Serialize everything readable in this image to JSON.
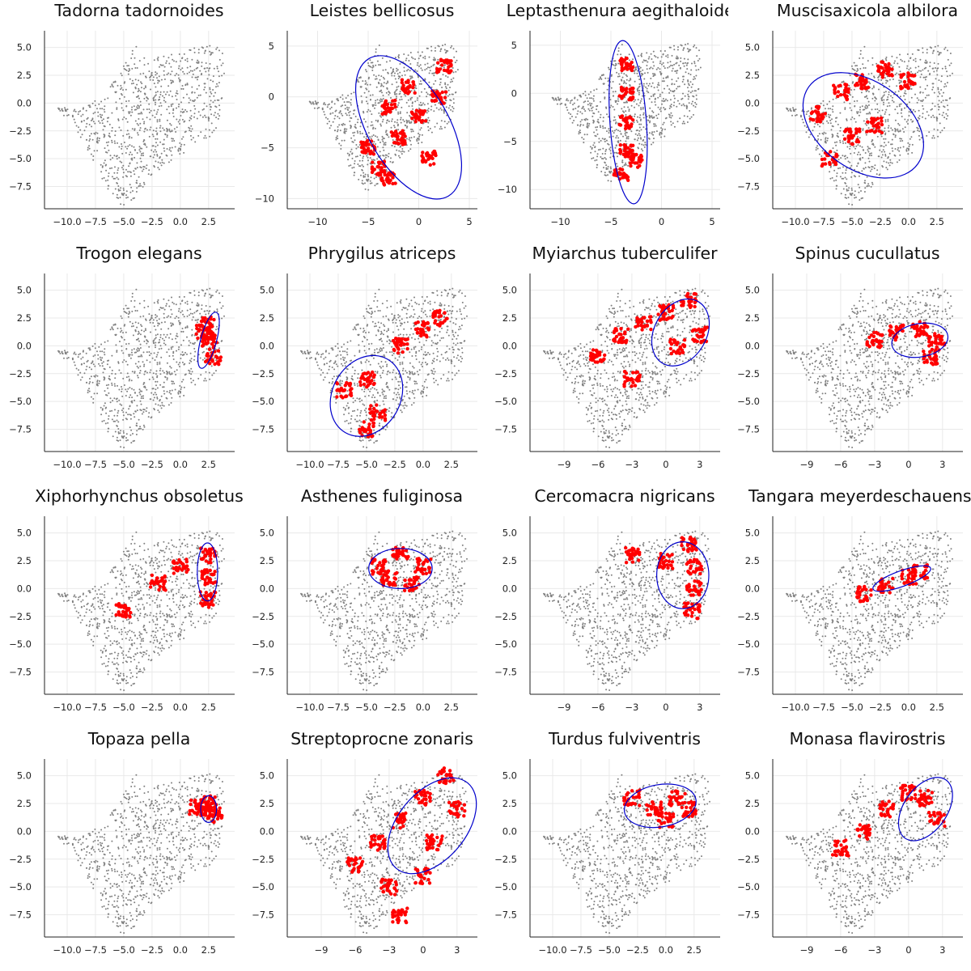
{
  "chart_data": [
    {
      "type": "scatter",
      "title": "Tadorna tadornoides",
      "xticks": [
        "−10.0",
        "−7.5",
        "−5.0",
        "−2.5",
        "0.0",
        "2.5"
      ],
      "yticks": [
        "5.0",
        "2.5",
        "0.0",
        "−2.5",
        "−5.0",
        "−7.5"
      ],
      "xlim": [
        -12,
        4.8
      ],
      "ylim": [
        -9.5,
        6.5
      ],
      "xtick_values": [
        -10,
        -7.5,
        -5,
        -2.5,
        0,
        2.5
      ],
      "ytick_values": [
        5,
        2.5,
        0,
        -2.5,
        -5,
        -7.5
      ],
      "species_points": "none",
      "ellipse": null
    },
    {
      "type": "scatter",
      "title": "Leistes bellicosus",
      "xticks": [
        "−10",
        "−5",
        "0",
        "5"
      ],
      "yticks": [
        "5",
        "0",
        "−5",
        "−10"
      ],
      "xlim": [
        -13,
        5.8
      ],
      "ylim": [
        -11,
        6.5
      ],
      "xtick_values": [
        -10,
        -5,
        0,
        5
      ],
      "ytick_values": [
        5,
        0,
        -5,
        -10
      ],
      "species_points": [
        [
          -4,
          -7
        ],
        [
          -2,
          -4
        ],
        [
          0,
          -2
        ],
        [
          2,
          0
        ],
        [
          2.5,
          3
        ],
        [
          -1,
          1
        ],
        [
          -3,
          -1
        ],
        [
          -5,
          -5
        ],
        [
          1,
          -6
        ],
        [
          -3,
          -8
        ]
      ],
      "ellipse": {
        "cx": -1,
        "cy": -3,
        "rx": 4,
        "ry": 7.8,
        "angle_deg": -30
      }
    },
    {
      "type": "scatter",
      "title": "Leptasthenura aegithaloides",
      "xticks": [
        "−10",
        "−5",
        "0",
        "5"
      ],
      "yticks": [
        "5",
        "0",
        "−5",
        "−10"
      ],
      "xlim": [
        -13,
        5.8
      ],
      "ylim": [
        -12,
        6.5
      ],
      "xtick_values": [
        -10,
        -5,
        0,
        5
      ],
      "ytick_values": [
        5,
        0,
        -5,
        -10
      ],
      "species_points": [
        [
          -3.5,
          3
        ],
        [
          -3.5,
          0
        ],
        [
          -3.5,
          -3
        ],
        [
          -3.5,
          -6
        ],
        [
          -4,
          -8.5
        ],
        [
          -2.5,
          -7
        ]
      ],
      "ellipse": {
        "cx": -3.3,
        "cy": -3,
        "rx": 1.8,
        "ry": 8.5,
        "angle_deg": -4
      }
    },
    {
      "type": "scatter",
      "title": "Muscisaxicola albilora",
      "xticks": [
        "−10.0",
        "−7.5",
        "−5.0",
        "−2.5",
        "0.0",
        "2.5"
      ],
      "yticks": [
        "5.0",
        "2.5",
        "0.0",
        "−2.5",
        "−5.0",
        "−7.5"
      ],
      "xlim": [
        -12,
        4.8
      ],
      "ylim": [
        -9.5,
        6.5
      ],
      "xtick_values": [
        -10,
        -7.5,
        -5,
        -2.5,
        0,
        2.5
      ],
      "ytick_values": [
        5,
        2.5,
        0,
        -2.5,
        -5,
        -7.5
      ],
      "species_points": [
        [
          -8,
          -1
        ],
        [
          -6,
          1
        ],
        [
          -4,
          2
        ],
        [
          -2,
          3
        ],
        [
          0,
          2
        ],
        [
          -5,
          -3
        ],
        [
          -7,
          -5
        ],
        [
          -3,
          -2
        ]
      ],
      "ellipse": {
        "cx": -4,
        "cy": -2,
        "rx": 3.9,
        "ry": 6.0,
        "angle_deg": -55
      }
    },
    {
      "type": "scatter",
      "title": "Trogon elegans",
      "xticks": [
        "−10.0",
        "−7.5",
        "−5.0",
        "−2.5",
        "0.0",
        "2.5"
      ],
      "yticks": [
        "5.0",
        "2.5",
        "0.0",
        "−2.5",
        "−5.0",
        "−7.5"
      ],
      "xlim": [
        -12,
        4.8
      ],
      "ylim": [
        -9.5,
        6.5
      ],
      "xtick_values": [
        -10,
        -7.5,
        -5,
        -2.5,
        0,
        2.5
      ],
      "ytick_values": [
        5,
        2.5,
        0,
        -2.5,
        -5,
        -7.5
      ],
      "species_points": [
        [
          2.3,
          2.0
        ],
        [
          2.6,
          0.5
        ],
        [
          2.9,
          -1.0
        ],
        [
          2.1,
          1.2
        ]
      ],
      "ellipse": {
        "cx": 2.5,
        "cy": 0.5,
        "rx": 0.7,
        "ry": 2.6,
        "angle_deg": 15
      }
    },
    {
      "type": "scatter",
      "title": "Phrygilus atriceps",
      "xticks": [
        "−10.0",
        "−7.5",
        "−5.0",
        "−2.5",
        "0.0",
        "2.5"
      ],
      "yticks": [
        "5.0",
        "2.5",
        "0.0",
        "−2.5",
        "−5.0",
        "−7.5"
      ],
      "xlim": [
        -12,
        4.8
      ],
      "ylim": [
        -9.5,
        6.5
      ],
      "xtick_values": [
        -10,
        -7.5,
        -5,
        -2.5,
        0,
        2.5
      ],
      "ytick_values": [
        5,
        2.5,
        0,
        -2.5,
        -5,
        -7.5
      ],
      "species_points": [
        [
          -7,
          -4
        ],
        [
          -5,
          -3
        ],
        [
          -4,
          -6
        ],
        [
          -5,
          -7.5
        ],
        [
          -2,
          0
        ],
        [
          0,
          1.5
        ],
        [
          1.5,
          2.5
        ]
      ],
      "ellipse": {
        "cx": -5,
        "cy": -4.5,
        "rx": 3.0,
        "ry": 3.8,
        "angle_deg": 30
      }
    },
    {
      "type": "scatter",
      "title": "Myiarchus tuberculifer",
      "xticks": [
        "−9",
        "−6",
        "−3",
        "0",
        "3"
      ],
      "yticks": [
        "5.0",
        "2.5",
        "0.0",
        "−2.5",
        "−5.0",
        "−7.5"
      ],
      "xlim": [
        -12,
        4.8
      ],
      "ylim": [
        -9.5,
        6.5
      ],
      "xtick_values": [
        -9,
        -6,
        -3,
        0,
        3
      ],
      "ytick_values": [
        5,
        2.5,
        0,
        -2.5,
        -5,
        -7.5
      ],
      "species_points": [
        [
          -6,
          -1
        ],
        [
          -4,
          1
        ],
        [
          -2,
          2
        ],
        [
          0,
          3
        ],
        [
          2,
          4
        ],
        [
          3,
          1
        ],
        [
          1,
          0
        ],
        [
          -3,
          -3
        ]
      ],
      "ellipse": {
        "cx": 1.3,
        "cy": 1.2,
        "rx": 2.3,
        "ry": 3.2,
        "angle_deg": 30
      }
    },
    {
      "type": "scatter",
      "title": "Spinus cucullatus",
      "xticks": [
        "−9",
        "−6",
        "−3",
        "0",
        "3"
      ],
      "yticks": [
        "5.0",
        "2.5",
        "0.0",
        "−2.5",
        "−5.0",
        "−7.5"
      ],
      "xlim": [
        -12,
        4.8
      ],
      "ylim": [
        -9.5,
        6.5
      ],
      "xtick_values": [
        -9,
        -6,
        -3,
        0,
        3
      ],
      "ytick_values": [
        5,
        2.5,
        0,
        -2.5,
        -5,
        -7.5
      ],
      "species_points": [
        [
          -3,
          0.5
        ],
        [
          -1,
          1.2
        ],
        [
          1,
          1.5
        ],
        [
          2.5,
          0.5
        ],
        [
          2,
          -1
        ]
      ],
      "ellipse": {
        "cx": 1.0,
        "cy": 0.5,
        "rx": 2.5,
        "ry": 1.5,
        "angle_deg": -10
      }
    },
    {
      "type": "scatter",
      "title": "Xiphorhynchus obsoletus",
      "xticks": [
        "−10.0",
        "−7.5",
        "−5.0",
        "−2.5",
        "0.0",
        "2.5"
      ],
      "yticks": [
        "5.0",
        "2.5",
        "0.0",
        "−2.5",
        "−5.0",
        "−7.5"
      ],
      "xlim": [
        -12,
        4.8
      ],
      "ylim": [
        -9.5,
        6.5
      ],
      "xtick_values": [
        -10,
        -7.5,
        -5,
        -2.5,
        0,
        2.5
      ],
      "ytick_values": [
        5,
        2.5,
        0,
        -2.5,
        -5,
        -7.5
      ],
      "species_points": [
        [
          2.5,
          3
        ],
        [
          2.6,
          1
        ],
        [
          2.4,
          -1
        ],
        [
          0,
          2
        ],
        [
          -2,
          0.5
        ],
        [
          -5,
          -2
        ]
      ],
      "ellipse": {
        "cx": 2.4,
        "cy": 1.5,
        "rx": 0.9,
        "ry": 2.6,
        "angle_deg": 0
      }
    },
    {
      "type": "scatter",
      "title": "Asthenes fuliginosa",
      "xticks": [
        "−10.0",
        "−7.5",
        "−5.0",
        "−2.5",
        "0.0",
        "2.5"
      ],
      "yticks": [
        "5.0",
        "2.5",
        "0.0",
        "−2.5",
        "−5.0",
        "−7.5"
      ],
      "xlim": [
        -12,
        4.8
      ],
      "ylim": [
        -9.5,
        6.5
      ],
      "xtick_values": [
        -10,
        -7.5,
        -5,
        -2.5,
        0,
        2.5
      ],
      "ytick_values": [
        5,
        2.5,
        0,
        -2.5,
        -5,
        -7.5
      ],
      "species_points": [
        [
          -4,
          2
        ],
        [
          -2,
          3
        ],
        [
          0,
          2
        ],
        [
          -1,
          0.5
        ],
        [
          -3,
          1
        ]
      ],
      "ellipse": {
        "cx": -2.0,
        "cy": 1.8,
        "rx": 2.8,
        "ry": 1.8,
        "angle_deg": 0
      }
    },
    {
      "type": "scatter",
      "title": "Cercomacra nigricans",
      "xticks": [
        "−9",
        "−6",
        "−3",
        "0",
        "3"
      ],
      "yticks": [
        "5.0",
        "2.5",
        "0.0",
        "−2.5",
        "−5.0",
        "−7.5"
      ],
      "xlim": [
        -12,
        4.8
      ],
      "ylim": [
        -9.5,
        6.5
      ],
      "xtick_values": [
        -9,
        -6,
        -3,
        0,
        3
      ],
      "ytick_values": [
        5,
        2.5,
        0,
        -2.5,
        -5,
        -7.5
      ],
      "species_points": [
        [
          2,
          4
        ],
        [
          2.5,
          2
        ],
        [
          2.5,
          0
        ],
        [
          2.3,
          -2
        ],
        [
          0,
          2.5
        ],
        [
          -3,
          3
        ]
      ],
      "ellipse": {
        "cx": 1.5,
        "cy": 1.2,
        "rx": 2.3,
        "ry": 3.0,
        "angle_deg": 0
      }
    },
    {
      "type": "scatter",
      "title": "Tangara meyerdeschauensei",
      "xticks": [
        "−10.0",
        "−7.5",
        "−5.0",
        "−2.5",
        "0.0",
        "2.5"
      ],
      "yticks": [
        "5.0",
        "2.5",
        "0.0",
        "−2.5",
        "−5.0",
        "−7.5"
      ],
      "xlim": [
        -12,
        4.8
      ],
      "ylim": [
        -9.5,
        6.5
      ],
      "xtick_values": [
        -10,
        -7.5,
        -5,
        -2.5,
        0,
        2.5
      ],
      "ytick_values": [
        5,
        2.5,
        0,
        -2.5,
        -5,
        -7.5
      ],
      "species_points": [
        [
          -2,
          0.3
        ],
        [
          0,
          1
        ],
        [
          1,
          1.5
        ],
        [
          -4,
          -0.5
        ]
      ],
      "ellipse": {
        "cx": -0.6,
        "cy": 0.9,
        "rx": 2.7,
        "ry": 0.7,
        "angle_deg": -20
      }
    },
    {
      "type": "scatter",
      "title": "Topaza pella",
      "xticks": [
        "−10.0",
        "−7.5",
        "−5.0",
        "−2.5",
        "0.0",
        "2.5"
      ],
      "yticks": [
        "5.0",
        "2.5",
        "0.0",
        "−2.5",
        "−5.0",
        "−7.5"
      ],
      "xlim": [
        -12,
        4.8
      ],
      "ylim": [
        -9.5,
        6.5
      ],
      "xtick_values": [
        -10,
        -7.5,
        -5,
        -2.5,
        0,
        2.5
      ],
      "ytick_values": [
        5,
        2.5,
        0,
        -2.5,
        -5,
        -7.5
      ],
      "species_points": [
        [
          2.5,
          2.5
        ],
        [
          2.2,
          2
        ],
        [
          3,
          1.5
        ],
        [
          1.5,
          2.2
        ]
      ],
      "ellipse": {
        "cx": 2.5,
        "cy": 2.0,
        "rx": 0.7,
        "ry": 1.2,
        "angle_deg": 0
      }
    },
    {
      "type": "scatter",
      "title": "Streptoprocne zonaris",
      "xticks": [
        "−9",
        "−6",
        "−3",
        "0",
        "3"
      ],
      "yticks": [
        "5.0",
        "2.5",
        "0.0",
        "−2.5",
        "−5.0",
        "−7.5"
      ],
      "xlim": [
        -12,
        4.8
      ],
      "ylim": [
        -9.5,
        6.5
      ],
      "xtick_values": [
        -9,
        -6,
        -3,
        0,
        3
      ],
      "ytick_values": [
        5,
        2.5,
        0,
        -2.5,
        -5,
        -7.5
      ],
      "species_points": [
        [
          -6,
          -3
        ],
        [
          -4,
          -1
        ],
        [
          -2,
          1
        ],
        [
          0,
          3
        ],
        [
          2,
          5
        ],
        [
          3,
          2
        ],
        [
          1,
          -1
        ],
        [
          -3,
          -5
        ],
        [
          -2,
          -7.5
        ],
        [
          0,
          -4
        ]
      ],
      "ellipse": {
        "cx": 0.8,
        "cy": 0.5,
        "rx": 3.0,
        "ry": 5.0,
        "angle_deg": 40
      }
    },
    {
      "type": "scatter",
      "title": "Turdus fulviventris",
      "xticks": [
        "−10.0",
        "−7.5",
        "−5.0",
        "−2.5",
        "0.0",
        "2.5"
      ],
      "yticks": [
        "5.0",
        "2.5",
        "0.0",
        "−2.5",
        "−5.0",
        "−7.5"
      ],
      "xlim": [
        -12,
        4.8
      ],
      "ylim": [
        -9.5,
        6.5
      ],
      "xtick_values": [
        -10,
        -7.5,
        -5,
        -2.5,
        0,
        2.5
      ],
      "ytick_values": [
        5,
        2.5,
        0,
        -2.5,
        -5,
        -7.5
      ],
      "species_points": [
        [
          -3,
          3
        ],
        [
          -1,
          2
        ],
        [
          1,
          3
        ],
        [
          2,
          2
        ],
        [
          0,
          1
        ]
      ],
      "ellipse": {
        "cx": -0.5,
        "cy": 2.3,
        "rx": 3.2,
        "ry": 1.9,
        "angle_deg": -10
      }
    },
    {
      "type": "scatter",
      "title": "Monasa flavirostris",
      "xticks": [
        "−9",
        "−6",
        "−3",
        "0",
        "3"
      ],
      "yticks": [
        "5.0",
        "2.5",
        "0.0",
        "−2.5",
        "−5.0",
        "−7.5"
      ],
      "xlim": [
        -12,
        4.8
      ],
      "ylim": [
        -9.5,
        6.5
      ],
      "xtick_values": [
        -9,
        -6,
        -3,
        0,
        3
      ],
      "ytick_values": [
        5,
        2.5,
        0,
        -2.5,
        -5,
        -7.5
      ],
      "species_points": [
        [
          -6,
          -1.5
        ],
        [
          -4,
          0
        ],
        [
          -2,
          2
        ],
        [
          0,
          3.5
        ],
        [
          1.5,
          3
        ],
        [
          2.5,
          1
        ]
      ],
      "ellipse": {
        "cx": 1.5,
        "cy": 2.0,
        "rx": 1.9,
        "ry": 3.2,
        "angle_deg": 35
      }
    }
  ],
  "colors": {
    "background_points": "#808080",
    "species_points": "#ff0000",
    "ellipse": "#0000cc",
    "axis": "#222222",
    "grid": "#e9e9e9"
  },
  "legend": "none"
}
